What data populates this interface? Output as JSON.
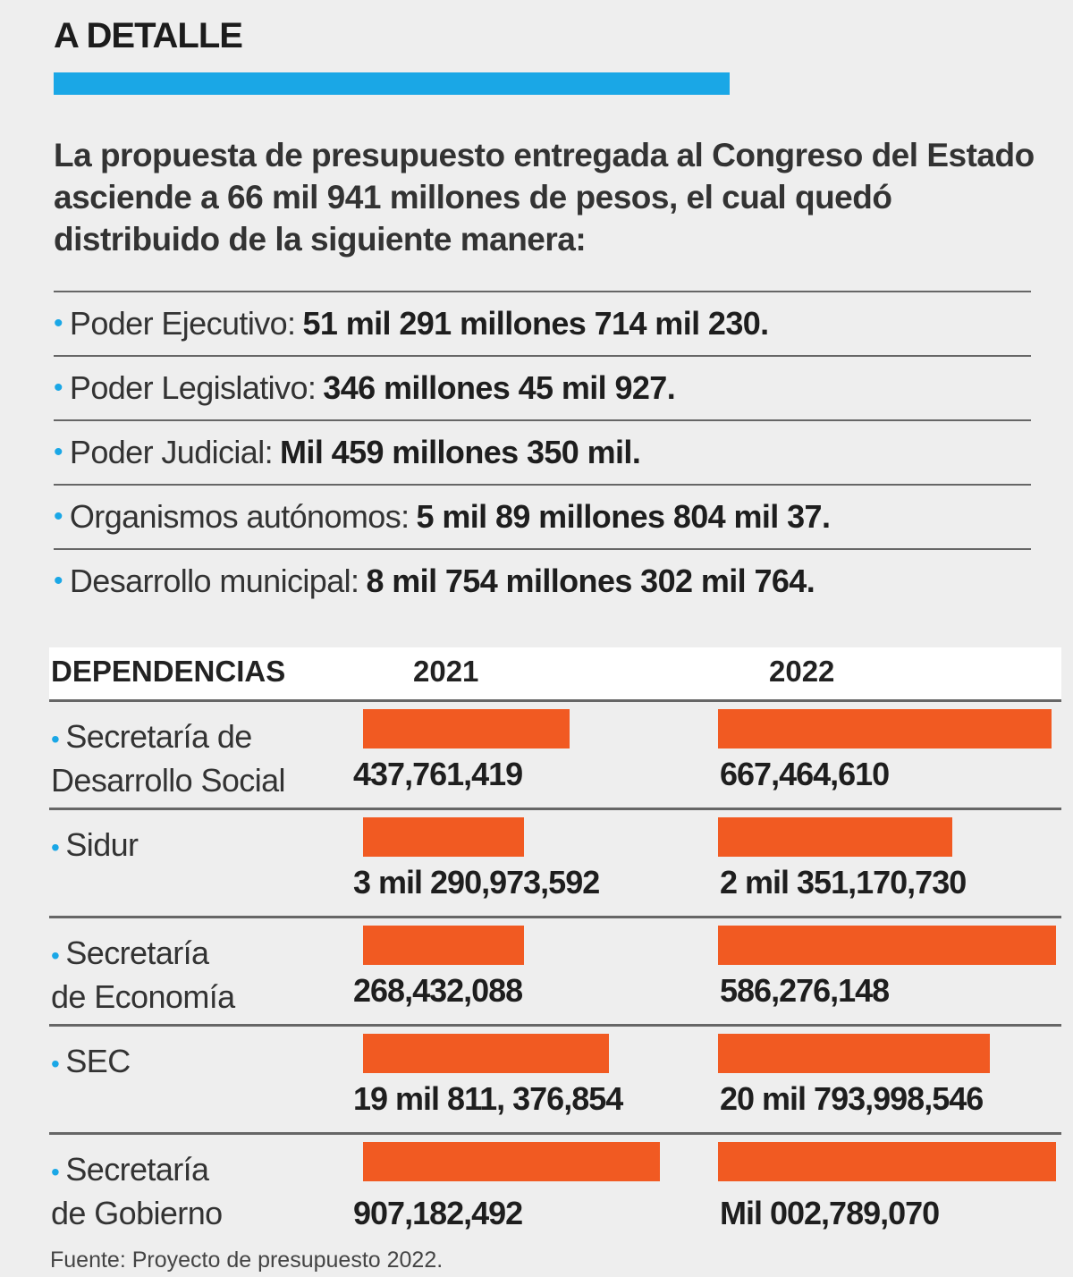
{
  "title": "A DETALLE",
  "intro": "La propuesta de presupuesto entregada al Congreso del Estado asciende a 66 mil 941 millones de pesos, el cual quedó distribuido de la siguiente manera:",
  "items": [
    {
      "label": "Poder Ejecutivo:",
      "value": "51 mil 291 millones 714 mil 230."
    },
    {
      "label": "Poder Legislativo:",
      "value": "346 millones 45 mil 927."
    },
    {
      "label": "Poder Judicial:",
      "value": "Mil 459 millones 350 mil."
    },
    {
      "label": "Organismos autónomos:",
      "value": "5 mil 89 millones 804 mil 37."
    },
    {
      "label": "Desarrollo municipal:",
      "value": "8 mil 754 millones 302 mil 764."
    }
  ],
  "colors": {
    "accent": "#1aa7e6",
    "bar": "#f15a22"
  },
  "chart_data": {
    "type": "bar",
    "header": {
      "label": "DEPENDENCIAS",
      "year_2021": "2021",
      "year_2022": "2022"
    },
    "categories": [
      [
        "Secretaría de",
        "Desarrollo Social"
      ],
      [
        "Sidur"
      ],
      [
        "Secretaría",
        "de Economía"
      ],
      [
        "SEC"
      ],
      [
        "Secretaría",
        "de Gobierno"
      ]
    ],
    "series": [
      {
        "name": "2021",
        "values": [
          437761419,
          3290973592,
          268432088,
          19811376854,
          907182492
        ],
        "labels": [
          "437,761,419",
          "3 mil 290,973,592",
          "268,432,088",
          "19 mil 811, 376,854",
          "907,182,492"
        ],
        "bar_fill": [
          0.612,
          0.477,
          0.477,
          0.728,
          0.877
        ]
      },
      {
        "name": "2022",
        "values": [
          667464610,
          2351170730,
          586276148,
          20793998546,
          1002789070
        ],
        "labels": [
          "667,464,610",
          "2 mil 351,170,730",
          "586,276,148",
          "20 mil 793,998,546",
          "Mil 002,789,070"
        ],
        "bar_fill": [
          0.987,
          0.692,
          1.0,
          0.803,
          1.0
        ]
      }
    ]
  },
  "source": "Fuente: Proyecto de presupuesto 2022."
}
